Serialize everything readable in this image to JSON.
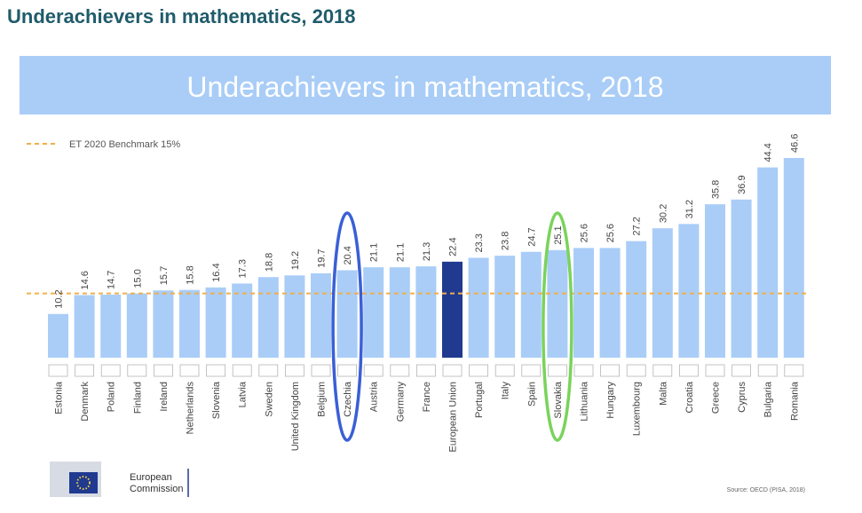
{
  "page_title": "Underachievers in mathematics, 2018",
  "logo": {
    "line1": "European",
    "line2": "Commission"
  },
  "source": "Source: OECD (PISA, 2018)",
  "colors": {
    "banner": "#a9cdf7",
    "bar": "#a9cdf7",
    "bar_highlight": "#1f3a8f",
    "benchmark": "#f0b04a",
    "title_text": "#1f5c6b",
    "banner_text": "#ffffff",
    "circle_blue": "#3a5fd6",
    "circle_green": "#7ad35c"
  },
  "chart_data": {
    "type": "bar",
    "title": "Underachievers in mathematics, 2018",
    "categories": [
      "Estonia",
      "Denmark",
      "Poland",
      "Finland",
      "Ireland",
      "Netherlands",
      "Slovenia",
      "Latvia",
      "Sweden",
      "United Kingdom",
      "Belgium",
      "Czechia",
      "Austria",
      "Germany",
      "France",
      "European Union",
      "Portugal",
      "Italy",
      "Spain",
      "Slovakia",
      "Lithuania",
      "Hungary",
      "Luxembourg",
      "Malta",
      "Croatia",
      "Greece",
      "Cyprus",
      "Bulgaria",
      "Romania"
    ],
    "values": [
      10.2,
      14.6,
      14.7,
      15.0,
      15.7,
      15.8,
      16.4,
      17.3,
      18.8,
      19.2,
      19.7,
      20.4,
      21.1,
      21.1,
      21.3,
      22.4,
      23.3,
      23.8,
      24.7,
      25.1,
      25.6,
      25.6,
      27.2,
      30.2,
      31.2,
      35.8,
      36.9,
      44.4,
      46.6
    ],
    "value_labels": [
      "10.2",
      "14.6",
      "14.7",
      "15.0",
      "15.7",
      "15.8",
      "16.4",
      "17.3",
      "18.8",
      "19.2",
      "19.7",
      "20.4",
      "21.1",
      "21.1",
      "21.3",
      "22.4",
      "23.3",
      "23.8",
      "24.7",
      "25.1",
      "25.6",
      "25.6",
      "27.2",
      "30.2",
      "31.2",
      "35.8",
      "36.9",
      "44.4",
      "46.6"
    ],
    "highlight": "European Union",
    "circled": [
      "Czechia",
      "Slovakia"
    ],
    "benchmark": {
      "label": "ET 2020 Benchmark 15%",
      "value": 15
    },
    "ylim": [
      0,
      50
    ],
    "xlabel": "",
    "ylabel": "",
    "grid": false,
    "legend": "top-left"
  }
}
